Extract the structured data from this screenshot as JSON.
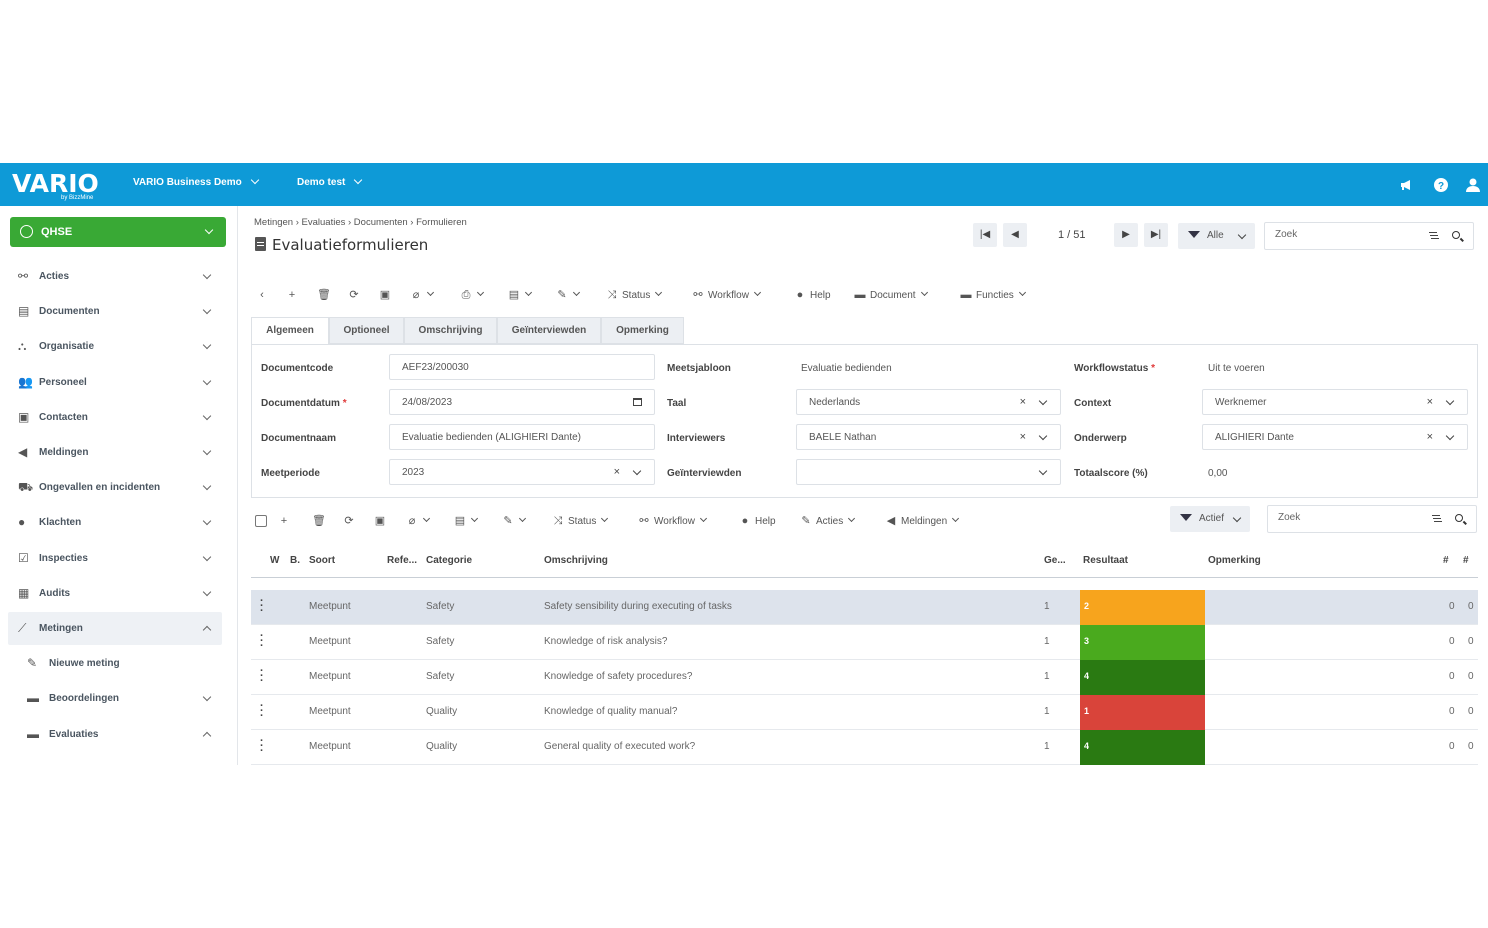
{
  "topbar": {
    "logo": "VARIO",
    "logo_by": "by BizzMine",
    "env": "VARIO Business Demo",
    "user_scope": "Demo test"
  },
  "sidebar": {
    "module": "QHSE",
    "items": [
      {
        "label": "Acties",
        "icon": "flow-icon"
      },
      {
        "label": "Documenten",
        "icon": "document-icon"
      },
      {
        "label": "Organisatie",
        "icon": "org-chart-icon"
      },
      {
        "label": "Personeel",
        "icon": "users-icon"
      },
      {
        "label": "Contacten",
        "icon": "contacts-icon"
      },
      {
        "label": "Meldingen",
        "icon": "megaphone-icon"
      },
      {
        "label": "Ongevallen en incidenten",
        "icon": "ambulance-icon"
      },
      {
        "label": "Klachten",
        "icon": "sad-face-icon"
      },
      {
        "label": "Inspecties",
        "icon": "checkbox-icon"
      },
      {
        "label": "Audits",
        "icon": "calendar-check-icon"
      },
      {
        "label": "Metingen",
        "icon": "chart-line-icon"
      },
      {
        "label": "Nieuwe meting",
        "icon": "pencil-icon"
      },
      {
        "label": "Beoordelingen",
        "icon": "folder-icon"
      },
      {
        "label": "Evaluaties",
        "icon": "folder-icon"
      }
    ]
  },
  "header": {
    "breadcrumb": "Metingen › Evaluaties › Documenten › Formulieren",
    "title": "Evaluatieformulieren",
    "page_count": "1 / 51",
    "filter_label": "Alle",
    "search_placeholder": "Zoek"
  },
  "toolbar1": {
    "status": "Status",
    "workflow": "Workflow",
    "help": "Help",
    "document": "Document",
    "functies": "Functies"
  },
  "tabs": [
    "Algemeen",
    "Optioneel",
    "Omschrijving",
    "Geïnterviewden",
    "Opmerking"
  ],
  "form": {
    "documentcode_label": "Documentcode",
    "documentcode": "AEF23/200030",
    "documentdatum_label": "Documentdatum",
    "documentdatum": "24/08/2023",
    "documentnaam_label": "Documentnaam",
    "documentnaam": "Evaluatie bedienden (ALIGHIERI Dante)",
    "meetperiode_label": "Meetperiode",
    "meetperiode": "2023",
    "meetsjabloon_label": "Meetsjabloon",
    "meetsjabloon": "Evaluatie bedienden",
    "taal_label": "Taal",
    "taal": "Nederlands",
    "interviewers_label": "Interviewers",
    "interviewers": "BAELE Nathan",
    "geinterviewden_label": "Geïnterviewden",
    "geinterviewden": "",
    "workflowstatus_label": "Workflowstatus",
    "workflowstatus": "Uit te voeren",
    "context_label": "Context",
    "context": "Werknemer",
    "onderwerp_label": "Onderwerp",
    "onderwerp": "ALIGHIERI Dante",
    "totaalscore_label": "Totaalscore (%)",
    "totaalscore": "0,00"
  },
  "toolbar2": {
    "status": "Status",
    "workflow": "Workflow",
    "help": "Help",
    "acties": "Acties",
    "meldingen": "Meldingen",
    "filter_label": "Actief",
    "search_placeholder": "Zoek"
  },
  "grid": {
    "headers": [
      "W",
      "B.",
      "Soort",
      "Refe...",
      "Categorie",
      "Omschrijving",
      "Ge...",
      "Resultaat",
      "Opmerking",
      "#",
      "#"
    ],
    "rows": [
      {
        "soort": "Meetpunt",
        "categorie": "Safety",
        "omschrijving": "Safety sensibility during executing of tasks",
        "ge": "1",
        "resultaat": "2",
        "color": "#f7a41d",
        "c1": "0",
        "c2": "0"
      },
      {
        "soort": "Meetpunt",
        "categorie": "Safety",
        "omschrijving": "Knowledge of risk analysis?",
        "ge": "1",
        "resultaat": "3",
        "color": "#4aaa1e",
        "c1": "0",
        "c2": "0"
      },
      {
        "soort": "Meetpunt",
        "categorie": "Safety",
        "omschrijving": "Knowledge of safety procedures?",
        "ge": "1",
        "resultaat": "4",
        "color": "#2a7a12",
        "c1": "0",
        "c2": "0"
      },
      {
        "soort": "Meetpunt",
        "categorie": "Quality",
        "omschrijving": "Knowledge of quality manual?",
        "ge": "1",
        "resultaat": "1",
        "color": "#d9443a",
        "c1": "0",
        "c2": "0"
      },
      {
        "soort": "Meetpunt",
        "categorie": "Quality",
        "omschrijving": "General quality of executed work?",
        "ge": "1",
        "resultaat": "4",
        "color": "#2a7a12",
        "c1": "0",
        "c2": "0"
      }
    ]
  },
  "colors": {
    "topbar": "#0e9ad7",
    "module": "#39a935"
  }
}
